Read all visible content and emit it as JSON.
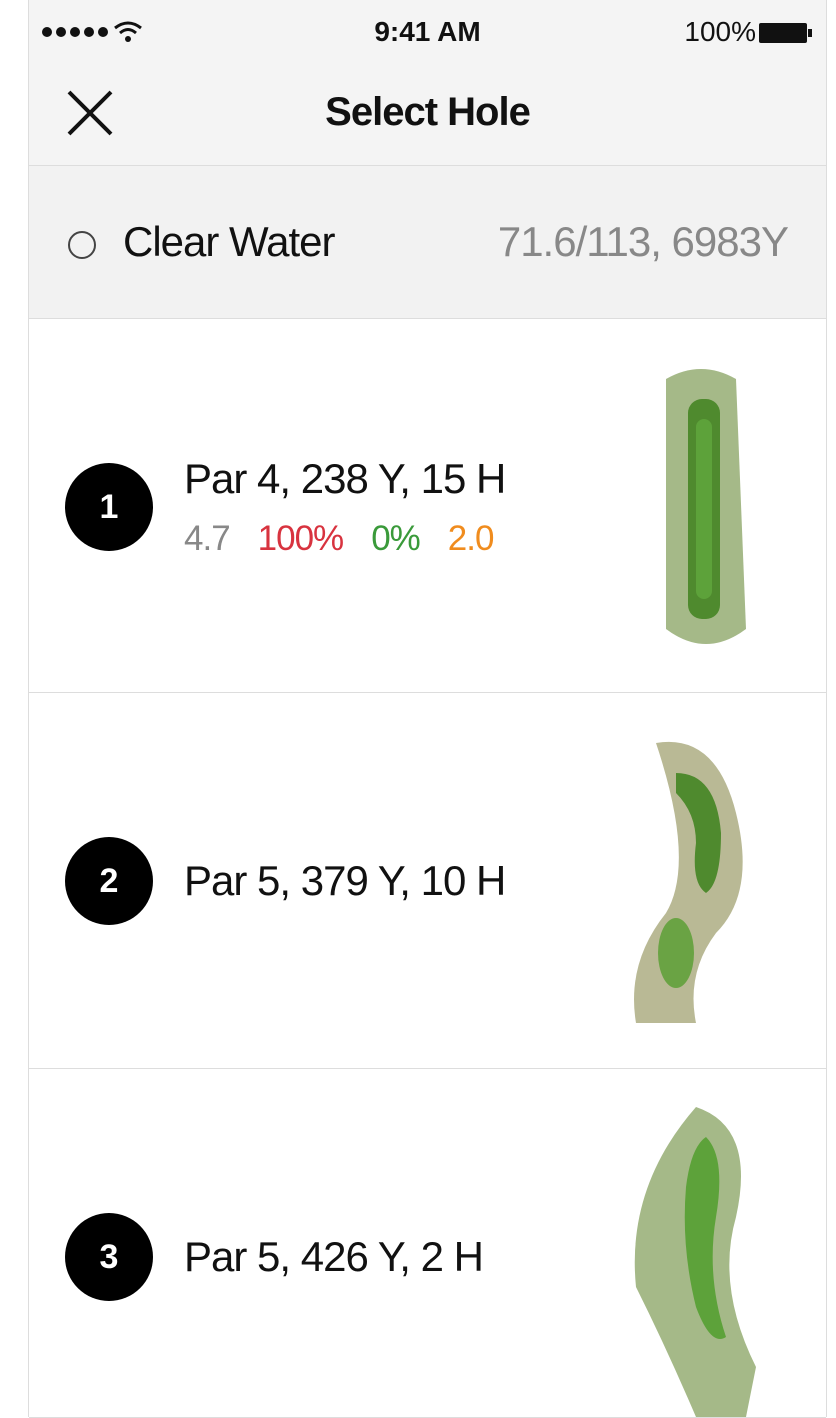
{
  "status_bar": {
    "time": "9:41 AM",
    "battery": "100%"
  },
  "nav": {
    "title": "Select Hole"
  },
  "course": {
    "name": "Clear Water",
    "rating": "71.6/113, 6983Y"
  },
  "holes": [
    {
      "number": "1",
      "info": "Par 4, 238 Y, 15 H",
      "stats": [
        "4.7",
        "100%",
        "0%",
        "2.0"
      ]
    },
    {
      "number": "2",
      "info": "Par 5, 379 Y, 10 H"
    },
    {
      "number": "3",
      "info": "Par 5, 426 Y, 2 H"
    }
  ]
}
